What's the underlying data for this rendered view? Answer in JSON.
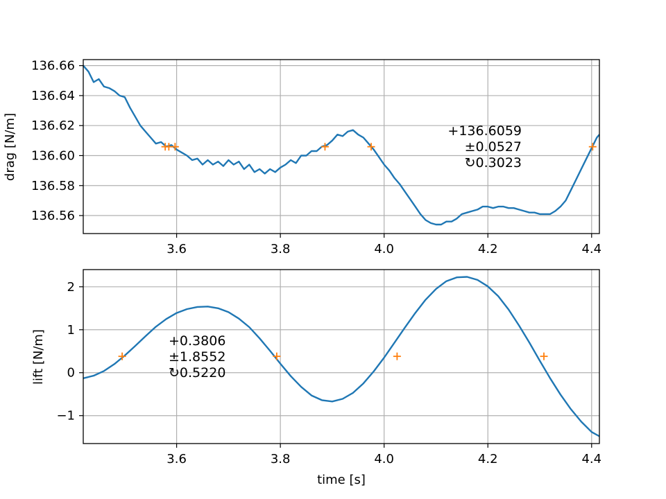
{
  "chart_data": [
    {
      "type": "line",
      "ylabel": "drag [N/m]",
      "xlabel": "",
      "xlim": [
        3.42,
        4.415
      ],
      "ylim": [
        136.548,
        136.664
      ],
      "xticks": [
        "3.6",
        "3.8",
        "4.0",
        "4.2",
        "4.4"
      ],
      "yticks": [
        "136.56",
        "136.58",
        "136.60",
        "136.62",
        "136.64",
        "136.66"
      ],
      "grid": true,
      "line_color": "#1f77b4",
      "marker_color": "#ff7f0e",
      "series": [
        {
          "x": [
            3.42,
            3.43,
            3.44,
            3.45,
            3.46,
            3.47,
            3.48,
            3.49,
            3.5,
            3.51,
            3.52,
            3.53,
            3.54,
            3.55,
            3.56,
            3.57,
            3.58,
            3.59,
            3.6,
            3.61,
            3.62,
            3.63,
            3.64,
            3.65,
            3.66,
            3.67,
            3.68,
            3.69,
            3.7,
            3.71,
            3.72,
            3.73,
            3.74,
            3.75,
            3.76,
            3.77,
            3.78,
            3.79,
            3.8,
            3.81,
            3.82,
            3.83,
            3.84,
            3.85,
            3.86,
            3.87,
            3.88,
            3.89,
            3.9,
            3.91,
            3.92,
            3.93,
            3.94,
            3.95,
            3.96,
            3.97,
            3.98,
            3.99,
            4.0,
            4.01,
            4.02,
            4.03,
            4.04,
            4.05,
            4.06,
            4.07,
            4.08,
            4.09,
            4.1,
            4.11,
            4.12,
            4.13,
            4.14,
            4.15,
            4.16,
            4.17,
            4.18,
            4.19,
            4.2,
            4.21,
            4.22,
            4.23,
            4.24,
            4.25,
            4.26,
            4.27,
            4.28,
            4.29,
            4.3,
            4.31,
            4.32,
            4.33,
            4.34,
            4.35,
            4.36,
            4.37,
            4.38,
            4.39,
            4.4,
            4.41,
            4.415
          ],
          "y": [
            136.66,
            136.656,
            136.649,
            136.651,
            136.646,
            136.645,
            136.643,
            136.64,
            136.639,
            136.632,
            136.626,
            136.62,
            136.616,
            136.612,
            136.608,
            136.609,
            136.606,
            136.607,
            136.604,
            136.602,
            136.6,
            136.597,
            136.598,
            136.594,
            136.597,
            136.594,
            136.596,
            136.593,
            136.597,
            136.594,
            136.596,
            136.591,
            136.594,
            136.589,
            136.591,
            136.588,
            136.591,
            136.589,
            136.592,
            136.594,
            136.597,
            136.595,
            136.6,
            136.6,
            136.603,
            136.603,
            136.606,
            136.607,
            136.61,
            136.614,
            136.613,
            136.616,
            136.617,
            136.614,
            136.612,
            136.608,
            136.604,
            136.599,
            136.594,
            136.59,
            136.585,
            136.581,
            136.576,
            136.571,
            136.566,
            136.561,
            136.557,
            136.555,
            136.554,
            136.554,
            136.556,
            136.556,
            136.558,
            136.561,
            136.562,
            136.563,
            136.564,
            136.566,
            136.566,
            136.565,
            136.566,
            136.566,
            136.565,
            136.565,
            136.564,
            136.563,
            136.562,
            136.562,
            136.561,
            136.561,
            136.561,
            136.563,
            136.566,
            136.57,
            136.577,
            136.584,
            136.591,
            136.598,
            136.605,
            136.612,
            136.614
          ]
        },
        {
          "type": "scatter",
          "marker": "+",
          "x": [
            3.578,
            3.585,
            3.597,
            3.886,
            3.975,
            4.402
          ],
          "y": [
            136.6059,
            136.6059,
            136.6059,
            136.6059,
            136.6059,
            136.6059
          ]
        }
      ],
      "annotation": [
        "+136.6059",
        "±0.0527",
        "↻0.3023"
      ]
    },
    {
      "type": "line",
      "ylabel": "lift [N/m]",
      "xlabel": "time [s]",
      "xlim": [
        3.42,
        4.415
      ],
      "ylim": [
        -1.65,
        2.4
      ],
      "xticks": [
        "3.6",
        "3.8",
        "4.0",
        "4.2",
        "4.4"
      ],
      "yticks": [
        "−1",
        "0",
        "1",
        "2"
      ],
      "grid": true,
      "line_color": "#1f77b4",
      "marker_color": "#ff7f0e",
      "series": [
        {
          "x": [
            3.42,
            3.44,
            3.46,
            3.48,
            3.5,
            3.52,
            3.54,
            3.56,
            3.58,
            3.6,
            3.62,
            3.64,
            3.66,
            3.68,
            3.7,
            3.72,
            3.74,
            3.76,
            3.78,
            3.8,
            3.82,
            3.84,
            3.86,
            3.88,
            3.9,
            3.92,
            3.94,
            3.96,
            3.98,
            4.0,
            4.02,
            4.04,
            4.06,
            4.08,
            4.1,
            4.12,
            4.14,
            4.16,
            4.18,
            4.2,
            4.22,
            4.24,
            4.26,
            4.28,
            4.3,
            4.32,
            4.34,
            4.36,
            4.38,
            4.4,
            4.415
          ],
          "y": [
            -0.13,
            -0.07,
            0.04,
            0.2,
            0.4,
            0.62,
            0.85,
            1.07,
            1.25,
            1.39,
            1.48,
            1.53,
            1.54,
            1.5,
            1.41,
            1.26,
            1.06,
            0.8,
            0.51,
            0.21,
            -0.08,
            -0.33,
            -0.53,
            -0.64,
            -0.67,
            -0.61,
            -0.47,
            -0.25,
            0.03,
            0.35,
            0.7,
            1.05,
            1.39,
            1.7,
            1.95,
            2.13,
            2.22,
            2.23,
            2.16,
            2.01,
            1.78,
            1.47,
            1.1,
            0.7,
            0.28,
            -0.13,
            -0.51,
            -0.85,
            -1.14,
            -1.38,
            -1.48
          ]
        },
        {
          "type": "scatter",
          "marker": "+",
          "x": [
            3.495,
            3.793,
            4.025,
            4.308
          ],
          "y": [
            0.3806,
            0.3806,
            0.3806,
            0.3806
          ]
        }
      ],
      "annotation": [
        "+0.3806",
        "±1.8552",
        "↻0.5220"
      ]
    }
  ]
}
